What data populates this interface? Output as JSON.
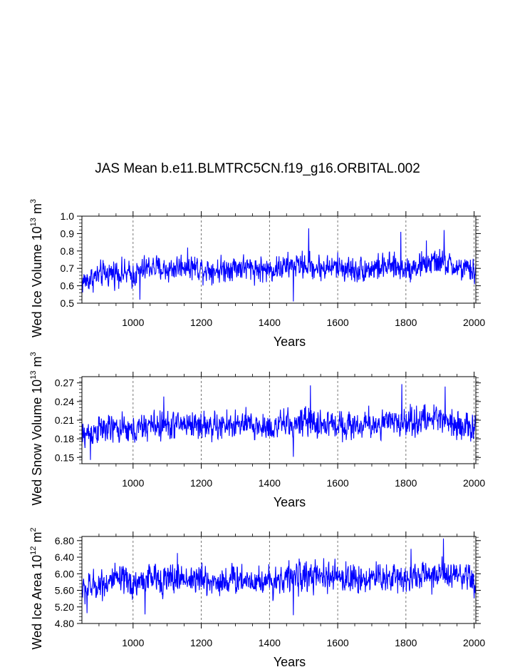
{
  "title": "JAS Mean b.e11.BLMTRC5CN.f19_g16.ORBITAL.002",
  "chart_data": [
    {
      "type": "line",
      "xlabel": "Years",
      "ylabel_main": "Wed Ice Volume 10",
      "ylabel_exp": "13",
      "ylabel_unit": " m",
      "ylabel_unit_exp": "3",
      "xlim": [
        850,
        2005
      ],
      "ylim": [
        0.5,
        1.0
      ],
      "xticks": [
        1000,
        1200,
        1400,
        1600,
        1800,
        2000
      ],
      "xtick_labels": [
        "1000",
        "1200",
        "1400",
        "1600",
        "1800",
        "2000"
      ],
      "yticks": [
        0.5,
        0.6,
        0.7,
        0.8,
        0.9,
        1.0
      ],
      "ytick_labels": [
        "0.5",
        "0.6",
        "0.7",
        "0.8",
        "0.9",
        "1.0"
      ],
      "gridlines_x": [
        1000,
        1200,
        1400,
        1600,
        1800,
        2000
      ],
      "color": "#0000ff",
      "series_samples": [
        {
          "x": 850,
          "y": 0.62
        },
        {
          "x": 900,
          "y": 0.66
        },
        {
          "x": 950,
          "y": 0.68
        },
        {
          "x": 1000,
          "y": 0.66
        },
        {
          "x": 1050,
          "y": 0.71
        },
        {
          "x": 1100,
          "y": 0.69
        },
        {
          "x": 1150,
          "y": 0.72
        },
        {
          "x": 1200,
          "y": 0.7
        },
        {
          "x": 1250,
          "y": 0.69
        },
        {
          "x": 1300,
          "y": 0.71
        },
        {
          "x": 1350,
          "y": 0.7
        },
        {
          "x": 1400,
          "y": 0.69
        },
        {
          "x": 1450,
          "y": 0.71
        },
        {
          "x": 1500,
          "y": 0.72
        },
        {
          "x": 1550,
          "y": 0.7
        },
        {
          "x": 1600,
          "y": 0.71
        },
        {
          "x": 1650,
          "y": 0.69
        },
        {
          "x": 1700,
          "y": 0.7
        },
        {
          "x": 1750,
          "y": 0.71
        },
        {
          "x": 1800,
          "y": 0.7
        },
        {
          "x": 1850,
          "y": 0.72
        },
        {
          "x": 1900,
          "y": 0.74
        },
        {
          "x": 1950,
          "y": 0.7
        },
        {
          "x": 2005,
          "y": 0.68
        }
      ],
      "noise": 0.045,
      "extremes": [
        {
          "x": 1020,
          "y": 0.52
        },
        {
          "x": 1470,
          "y": 0.51
        },
        {
          "x": 1515,
          "y": 0.93
        },
        {
          "x": 1785,
          "y": 0.91
        },
        {
          "x": 1912,
          "y": 0.92
        },
        {
          "x": 1860,
          "y": 0.86
        }
      ]
    },
    {
      "type": "line",
      "xlabel": "Years",
      "ylabel_main": "Wed Snow Volume 10",
      "ylabel_exp": "13",
      "ylabel_unit": " m",
      "ylabel_unit_exp": "3",
      "xlim": [
        850,
        2005
      ],
      "ylim": [
        0.14,
        0.28
      ],
      "xticks": [
        1000,
        1200,
        1400,
        1600,
        1800,
        2000
      ],
      "xtick_labels": [
        "1000",
        "1200",
        "1400",
        "1600",
        "1800",
        "2000"
      ],
      "yticks": [
        0.15,
        0.18,
        0.21,
        0.24,
        0.27
      ],
      "ytick_labels": [
        "0.15",
        "0.18",
        "0.21",
        "0.24",
        "0.27"
      ],
      "gridlines_x": [
        1000,
        1200,
        1400,
        1600,
        1800,
        2000
      ],
      "color": "#0000ff",
      "series_samples": [
        {
          "x": 850,
          "y": 0.185
        },
        {
          "x": 900,
          "y": 0.195
        },
        {
          "x": 950,
          "y": 0.196
        },
        {
          "x": 1000,
          "y": 0.192
        },
        {
          "x": 1050,
          "y": 0.203
        },
        {
          "x": 1100,
          "y": 0.2
        },
        {
          "x": 1150,
          "y": 0.205
        },
        {
          "x": 1200,
          "y": 0.202
        },
        {
          "x": 1250,
          "y": 0.199
        },
        {
          "x": 1300,
          "y": 0.203
        },
        {
          "x": 1350,
          "y": 0.201
        },
        {
          "x": 1400,
          "y": 0.198
        },
        {
          "x": 1450,
          "y": 0.204
        },
        {
          "x": 1500,
          "y": 0.207
        },
        {
          "x": 1550,
          "y": 0.203
        },
        {
          "x": 1600,
          "y": 0.204
        },
        {
          "x": 1650,
          "y": 0.201
        },
        {
          "x": 1700,
          "y": 0.203
        },
        {
          "x": 1750,
          "y": 0.205
        },
        {
          "x": 1800,
          "y": 0.207
        },
        {
          "x": 1850,
          "y": 0.21
        },
        {
          "x": 1900,
          "y": 0.215
        },
        {
          "x": 1950,
          "y": 0.205
        },
        {
          "x": 2005,
          "y": 0.193
        }
      ],
      "noise": 0.014,
      "extremes": [
        {
          "x": 875,
          "y": 0.146
        },
        {
          "x": 1470,
          "y": 0.151
        },
        {
          "x": 1520,
          "y": 0.266
        },
        {
          "x": 1788,
          "y": 0.268
        },
        {
          "x": 1915,
          "y": 0.264
        },
        {
          "x": 1090,
          "y": 0.248
        }
      ]
    },
    {
      "type": "line",
      "xlabel": "Years",
      "ylabel_main": "Wed Ice Area 10",
      "ylabel_exp": "12",
      "ylabel_unit": " m",
      "ylabel_unit_exp": "2",
      "xlim": [
        850,
        2005
      ],
      "ylim": [
        4.8,
        6.9
      ],
      "xticks": [
        1000,
        1200,
        1400,
        1600,
        1800,
        2000
      ],
      "xtick_labels": [
        "1000",
        "1200",
        "1400",
        "1600",
        "1800",
        "2000"
      ],
      "yticks": [
        4.8,
        5.2,
        5.6,
        6.0,
        6.4,
        6.8
      ],
      "ytick_labels": [
        "4.80",
        "5.20",
        "5.60",
        "6.00",
        "6.40",
        "6.80"
      ],
      "gridlines_x": [
        1000,
        1200,
        1400,
        1600,
        1800,
        2000
      ],
      "color": "#0000ff",
      "series_samples": [
        {
          "x": 850,
          "y": 5.6
        },
        {
          "x": 900,
          "y": 5.75
        },
        {
          "x": 950,
          "y": 5.85
        },
        {
          "x": 1000,
          "y": 5.75
        },
        {
          "x": 1050,
          "y": 5.9
        },
        {
          "x": 1100,
          "y": 5.85
        },
        {
          "x": 1150,
          "y": 5.9
        },
        {
          "x": 1200,
          "y": 5.85
        },
        {
          "x": 1250,
          "y": 5.8
        },
        {
          "x": 1300,
          "y": 5.88
        },
        {
          "x": 1350,
          "y": 5.85
        },
        {
          "x": 1400,
          "y": 5.82
        },
        {
          "x": 1450,
          "y": 5.9
        },
        {
          "x": 1500,
          "y": 5.95
        },
        {
          "x": 1550,
          "y": 5.9
        },
        {
          "x": 1600,
          "y": 5.92
        },
        {
          "x": 1650,
          "y": 5.88
        },
        {
          "x": 1700,
          "y": 5.9
        },
        {
          "x": 1750,
          "y": 5.92
        },
        {
          "x": 1800,
          "y": 5.9
        },
        {
          "x": 1850,
          "y": 5.95
        },
        {
          "x": 1900,
          "y": 6.0
        },
        {
          "x": 1950,
          "y": 5.9
        },
        {
          "x": 2005,
          "y": 5.8
        }
      ],
      "noise": 0.22,
      "extremes": [
        {
          "x": 865,
          "y": 5.05
        },
        {
          "x": 1035,
          "y": 5.02
        },
        {
          "x": 1470,
          "y": 5.0
        },
        {
          "x": 1910,
          "y": 6.85
        },
        {
          "x": 1815,
          "y": 6.6
        },
        {
          "x": 1130,
          "y": 6.5
        }
      ]
    }
  ]
}
